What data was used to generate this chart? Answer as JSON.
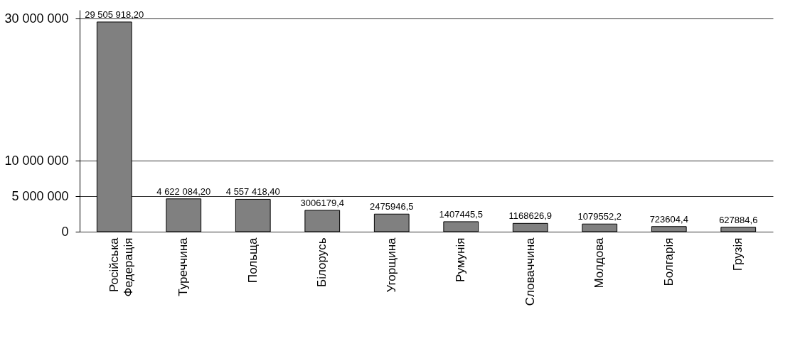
{
  "chart_data": {
    "type": "bar",
    "categories": [
      "Російська Федерація",
      "Туреччина",
      "Польща",
      "Білорусь",
      "Угорщина",
      "Румунія",
      "Словаччина",
      "Молдова",
      "Болгарія",
      "Грузія"
    ],
    "values": [
      29505918.2,
      4622084.2,
      4557418.4,
      3006179.4,
      2475946.5,
      1407445.5,
      1168626.9,
      1079552.2,
      723604.4,
      627884.6
    ],
    "value_labels": [
      "29 505 918,20",
      "4 622 084,20",
      "4 557 418,40",
      "3006179,4",
      "2475946,5",
      "1407445,5",
      "1168626,9",
      "1079552,2",
      "723604,4",
      "627884,6"
    ],
    "color": "#808080",
    "ylim": [
      0,
      31200000
    ],
    "yticks": [
      0,
      {
        "value": 5000000,
        "label": "5 000 000"
      },
      {
        "value": 10000000,
        "label": "10 000 000"
      },
      {
        "value": 30000000,
        "label": "30 000 000"
      }
    ],
    "grid": "y"
  }
}
